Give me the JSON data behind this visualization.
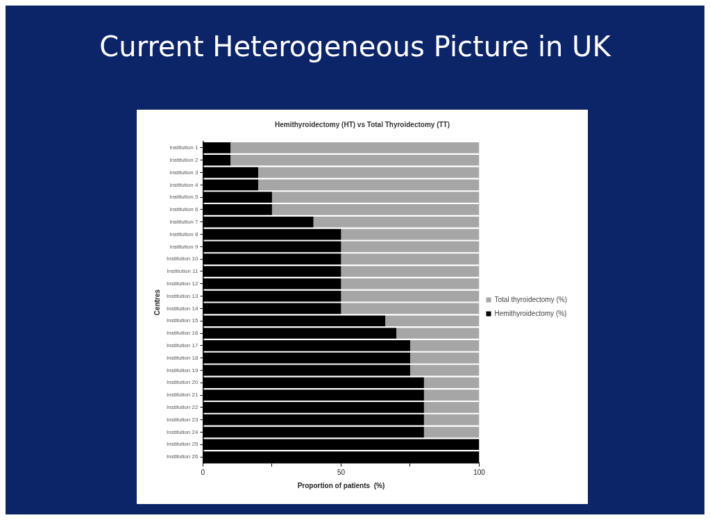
{
  "chart_data": {
    "type": "bar",
    "orientation": "horizontal",
    "stacked": true,
    "title": "Current Heterogeneous Picture in UK",
    "subtitle": "Hemithyroidectomy (HT) vs Total Thyroidectomy (TT)",
    "xlabel": "Proportion of patients  (%)",
    "ylabel": "Centres",
    "categories": [
      "Institution 1",
      "Institution 2",
      "Institution 3",
      "Institution 4",
      "Institution 5",
      "Institution 6",
      "Institution 7",
      "Institution 8",
      "Institution 9",
      "Institution 10",
      "Institution 11",
      "Institution 12",
      "Institution 13",
      "Institution 14",
      "Institution 15",
      "Institution 16",
      "Institution 17",
      "Institution 18",
      "Institution 19",
      "Institution 20",
      "Institution 21",
      "Institution 22",
      "Institution 23",
      "Institution 24",
      "Institution 25",
      "Institution 26"
    ],
    "series": [
      {
        "name": "Hemithyroidectomy (%)",
        "color": "#000000",
        "values": [
          10,
          10,
          20,
          20,
          25,
          25,
          40,
          50,
          50,
          50,
          50,
          50,
          50,
          50,
          66,
          70,
          75,
          75,
          75,
          80,
          80,
          80,
          80,
          80,
          100,
          100
        ]
      },
      {
        "name": "Total thyroidectomy (%)",
        "color": "#a6a6a6",
        "values": [
          90,
          90,
          80,
          80,
          75,
          75,
          60,
          50,
          50,
          50,
          50,
          50,
          50,
          50,
          34,
          30,
          25,
          25,
          25,
          20,
          20,
          20,
          20,
          20,
          0,
          0
        ]
      }
    ],
    "xlim": [
      0,
      100
    ],
    "xticks": [
      0,
      {
        "value": 25,
        "label": null
      },
      50,
      {
        "value": 75,
        "label": null
      },
      100
    ],
    "grid": false,
    "legend": "right"
  }
}
